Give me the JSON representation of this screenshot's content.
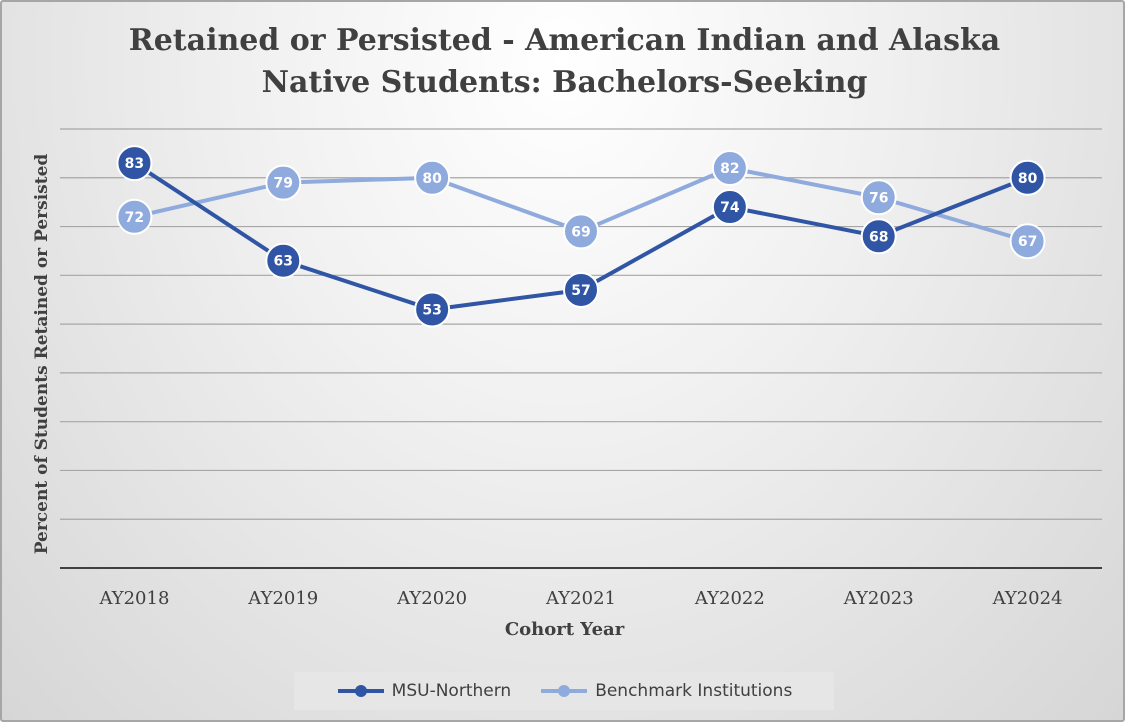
{
  "chart_data": {
    "type": "line",
    "title_lines": [
      "Retained or Persisted - American Indian and Alaska",
      "Native Students: Bachelors-Seeking"
    ],
    "xlabel": "Cohort Year",
    "ylabel": "Percent of  Students Retained or Persisted",
    "categories": [
      "AY2018",
      "AY2019",
      "AY2020",
      "AY2021",
      "AY2022",
      "AY2023",
      "AY2024"
    ],
    "ylim": [
      0,
      90
    ],
    "gridline_step": 10,
    "grid": true,
    "legend_position": "bottom",
    "series": [
      {
        "name": "MSU-Northern",
        "color": "#2f55a4",
        "values": [
          83,
          63,
          53,
          57,
          74,
          68,
          80
        ]
      },
      {
        "name": "Benchmark Institutions",
        "color": "#8faadc",
        "values": [
          72,
          79,
          80,
          69,
          82,
          76,
          67
        ]
      }
    ]
  }
}
